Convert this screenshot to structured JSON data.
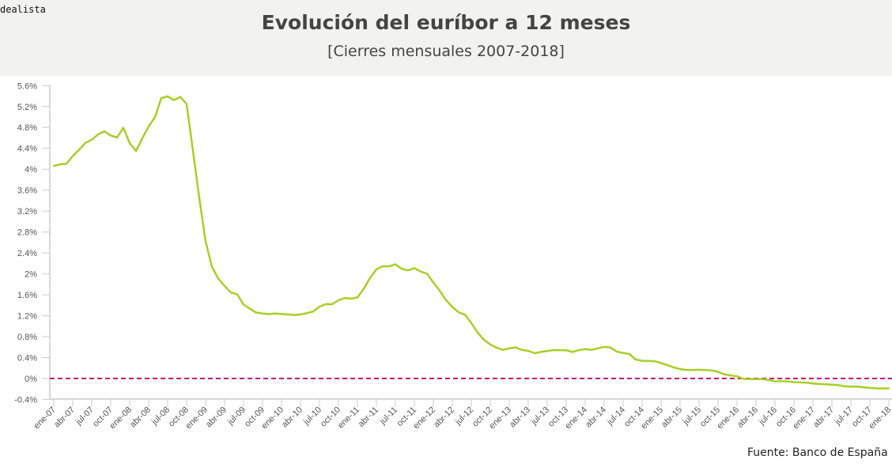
{
  "logo": "dealista",
  "colors": {
    "line": "#a8cf24",
    "zero_line": "#cc1177",
    "header_bg": "#f2f2ee",
    "axis": "#cccccc"
  },
  "chart_data": {
    "type": "line",
    "title": "Evolución del euríbor a 12 meses",
    "subtitle": "[Cierres mensuales 2007-2018]",
    "source": "Fuente: Banco de España",
    "xlabel": "",
    "ylabel": "",
    "ylim": [
      -0.4,
      5.6
    ],
    "y_ticks": [
      -0.4,
      0,
      0.4,
      0.8,
      1.2,
      1.6,
      2,
      2.4,
      2.8,
      3.2,
      3.6,
      4,
      4.4,
      4.8,
      5.2,
      5.6
    ],
    "y_tick_labels": [
      "-0.4%",
      "0%",
      "0.4%",
      "0.8%",
      "1.2%",
      "1.6%",
      "2%",
      "2.4%",
      "2.8%",
      "3.2%",
      "3.6%",
      "4%",
      "4.4%",
      "4.8%",
      "5.2%",
      "5.6%"
    ],
    "x_tick_labels": [
      "ene-07",
      "abr-07",
      "jul-07",
      "oct-07",
      "ene-08",
      "abr-08",
      "jul-08",
      "oct-08",
      "ene-09",
      "abr-09",
      "jul-09",
      "oct-09",
      "ene-10",
      "abr-10",
      "jul-10",
      "oct-10",
      "ene-11",
      "abr-11",
      "jul-11",
      "oct-11",
      "ene-12",
      "abr-12",
      "jul-12",
      "oct-12",
      "ene-13",
      "abr-13",
      "jul-13",
      "oct-13",
      "ene-14",
      "abr-14",
      "jul-14",
      "oct-14",
      "ene-15",
      "abr-15",
      "jul-15",
      "oct-15",
      "ene-16",
      "abr-16",
      "jul-16",
      "oct-16",
      "ene-17",
      "abr-17",
      "jul-17",
      "oct-17",
      "ene-18"
    ],
    "grid": false,
    "reference_line": {
      "y": 0,
      "style": "dashed"
    },
    "x_start": "ene-07",
    "x_end": "ene-18",
    "series": [
      {
        "values": [
          4.064,
          4.094,
          4.106,
          4.253,
          4.373,
          4.505,
          4.564,
          4.666,
          4.725,
          4.647,
          4.607,
          4.793,
          4.498,
          4.349,
          4.59,
          4.82,
          4.994,
          5.361,
          5.393,
          5.323,
          5.384,
          5.248,
          4.35,
          3.452,
          2.622,
          2.135,
          1.909,
          1.771,
          1.644,
          1.61,
          1.412,
          1.334,
          1.261,
          1.243,
          1.231,
          1.242,
          1.232,
          1.225,
          1.215,
          1.225,
          1.249,
          1.281,
          1.373,
          1.421,
          1.42,
          1.495,
          1.541,
          1.526,
          1.55,
          1.714,
          1.924,
          2.086,
          2.147,
          2.144,
          2.183,
          2.097,
          2.067,
          2.11,
          2.044,
          2.004,
          1.837,
          1.678,
          1.499,
          1.368,
          1.266,
          1.219,
          1.061,
          0.877,
          0.74,
          0.65,
          0.588,
          0.549,
          0.575,
          0.594,
          0.545,
          0.528,
          0.484,
          0.507,
          0.525,
          0.542,
          0.543,
          0.541,
          0.506,
          0.543,
          0.562,
          0.549,
          0.577,
          0.604,
          0.592,
          0.513,
          0.488,
          0.469,
          0.362,
          0.338,
          0.335,
          0.329,
          0.298,
          0.255,
          0.212,
          0.18,
          0.165,
          0.163,
          0.167,
          0.161,
          0.154,
          0.128,
          0.079,
          0.059,
          0.042,
          -0.008,
          -0.012,
          -0.01,
          -0.013,
          -0.028,
          -0.056,
          -0.048,
          -0.057,
          -0.069,
          -0.074,
          -0.08,
          -0.095,
          -0.106,
          -0.11,
          -0.119,
          -0.127,
          -0.149,
          -0.154,
          -0.156,
          -0.168,
          -0.18,
          -0.189,
          -0.19,
          -0.189
        ]
      }
    ]
  }
}
